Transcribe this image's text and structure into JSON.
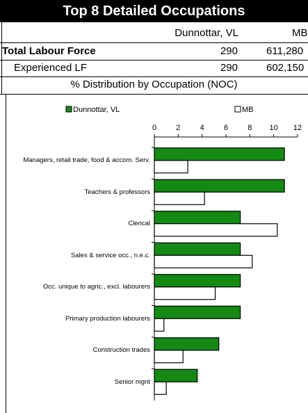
{
  "table": {
    "title": "Top 8 Detailed Occupations",
    "columns": [
      "Dunnottar, VL",
      "MB"
    ],
    "rows": [
      [
        "Total Labour Force",
        "290",
        "611,280"
      ],
      [
        "Experienced LF",
        "290",
        "602,150"
      ]
    ],
    "section": "% Distribution by Occupation (NOC)"
  },
  "chart_data": {
    "type": "hbar",
    "categories": [
      "Managers, retail trade, food & accom. Serv.",
      "Teachers & professors",
      "Clerical",
      "Sales & service occ., n.e.c.",
      "Occ. unique to agric., excl. labourers",
      "Primary production labourers",
      "Construction trades",
      "Senior mgnt"
    ],
    "series": [
      {
        "name": "Dunnottar, VL",
        "color": "#148a14",
        "values": [
          10.9,
          10.9,
          7.2,
          7.2,
          7.2,
          7.2,
          5.4,
          3.6
        ]
      },
      {
        "name": "MB",
        "color": "#ffffff",
        "values": [
          2.8,
          4.2,
          10.3,
          8.2,
          5.1,
          0.8,
          2.4,
          1.0
        ]
      }
    ],
    "xlim": [
      0,
      12
    ],
    "xticks": [
      0,
      2,
      4,
      6,
      8,
      10,
      12
    ],
    "legend": "top"
  }
}
